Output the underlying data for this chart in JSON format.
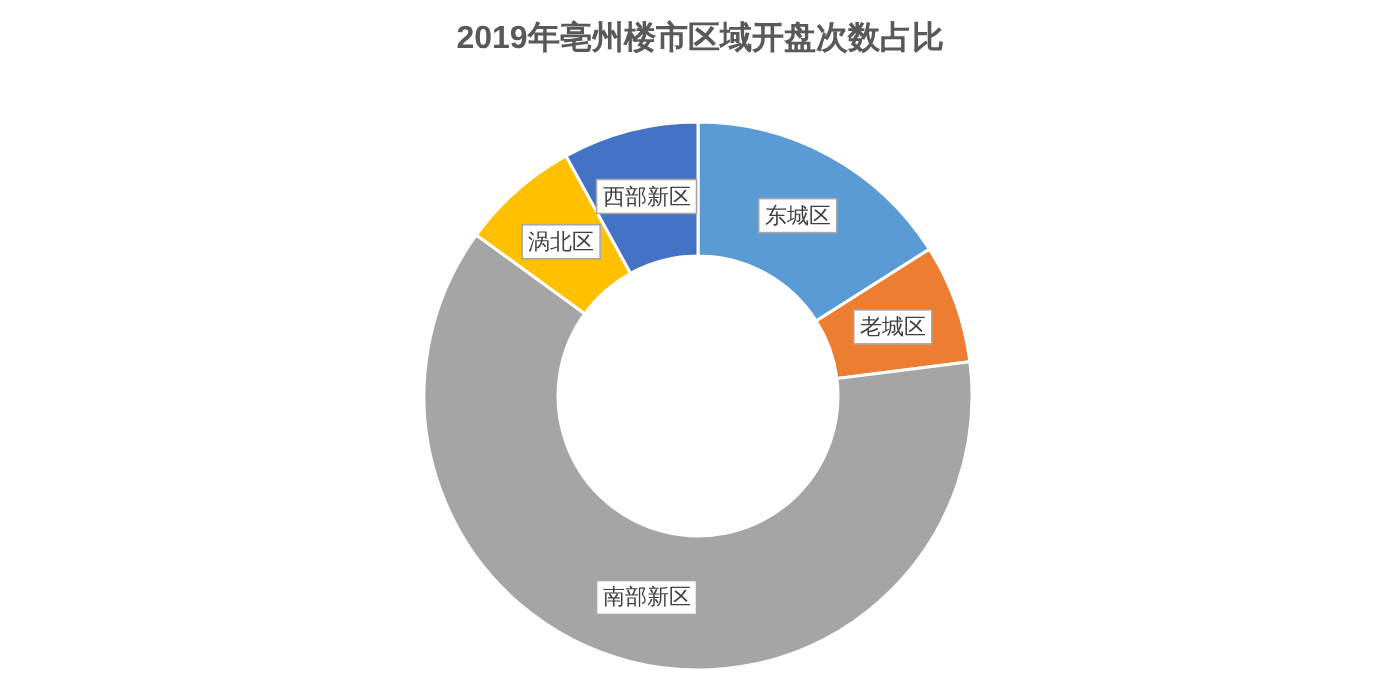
{
  "chart_data": {
    "type": "donut",
    "title": "2019年亳州楼市区域开盘次数占比",
    "categories": [
      "东城区",
      "老城区",
      "南部新区",
      "涡北区",
      "西部新区"
    ],
    "values": [
      16,
      7,
      62,
      7,
      8
    ],
    "colors": [
      "#5b9bd5",
      "#ed7d31",
      "#a5a5a5",
      "#ffc000",
      "#4472c4"
    ]
  }
}
